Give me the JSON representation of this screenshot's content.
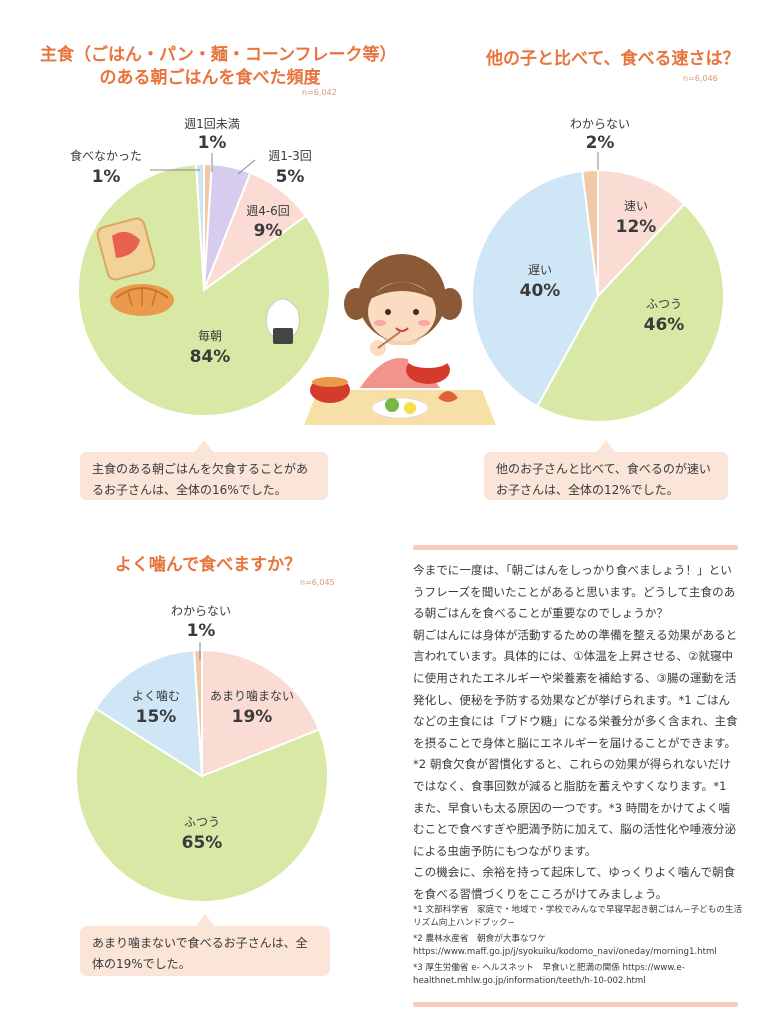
{
  "chart_data": [
    {
      "type": "pie",
      "title_line1": "主食（ごはん・パン・麺・コーンフレーク等）",
      "title_line2": "のある朝ごはんを食べた頻度",
      "n_label": "n=6,042",
      "slices": [
        {
          "label": "週1回未満",
          "value": 1,
          "pct_label": "1%",
          "color": "#f2c9a6"
        },
        {
          "label": "週1-3回",
          "value": 5,
          "pct_label": "5%",
          "color": "#d6cdee"
        },
        {
          "label": "週4-6回",
          "value": 9,
          "pct_label": "9%",
          "color": "#fbdcd4"
        },
        {
          "label": "毎朝",
          "value": 84,
          "pct_label": "84%",
          "color": "#d8e9a6"
        },
        {
          "label": "食べなかった",
          "value": 1,
          "pct_label": "1%",
          "color": "#cfe6f2"
        }
      ],
      "callout": "主食のある朝ごはんを欠食することがあるお子さんは、全体の16%でした。"
    },
    {
      "type": "pie",
      "title": "他の子と比べて、食べる速さは？",
      "n_label": "n=6,046",
      "slices": [
        {
          "label": "速い",
          "value": 12,
          "pct_label": "12%",
          "color": "#fbdcd4"
        },
        {
          "label": "ふつう",
          "value": 46,
          "pct_label": "46%",
          "color": "#d8e9a6"
        },
        {
          "label": "遅い",
          "value": 40,
          "pct_label": "40%",
          "color": "#cfe6f6"
        },
        {
          "label": "わからない",
          "value": 2,
          "pct_label": "2%",
          "color": "#f2c9a6"
        }
      ],
      "callout": "他のお子さんと比べて、食べるのが速いお子さんは、全体の12%でした。"
    },
    {
      "type": "pie",
      "title": "よく噛んで食べますか？",
      "n_label": "n=6,045",
      "slices": [
        {
          "label": "あまり噛まない",
          "value": 19,
          "pct_label": "19%",
          "color": "#fbdcd4"
        },
        {
          "label": "ふつう",
          "value": 65,
          "pct_label": "65%",
          "color": "#d8e9a6"
        },
        {
          "label": "よく噛む",
          "value": 15,
          "pct_label": "15%",
          "color": "#cfe6f6"
        },
        {
          "label": "わからない",
          "value": 1,
          "pct_label": "1%",
          "color": "#f2c9a6"
        }
      ],
      "callout": "あまり噛まないで食べるお子さんは、全体の19%でした。"
    }
  ],
  "article": {
    "paragraphs": [
      "今までに一度は、「朝ごはんをしっかり食べましょう！」というフレーズを聞いたことがあると思います。どうして主食のある朝ごはんを食べることが重要なのでしょうか？",
      "朝ごはんには身体が活動するための準備を整える効果があると言われています。具体的には、①体温を上昇させる、②就寝中に使用されたエネルギーや栄養素を補給する、③腸の運動を活発化し、便秘を予防する効果などが挙げられます。*1 ごはんなどの主食には「ブドウ糖」になる栄養分が多く含まれ、主食を摂ることで身体と脳にエネルギーを届けることができます。*2 朝食欠食が習慣化すると、これらの効果が得られないだけではなく、食事回数が減ると脂肪を蓄えやすくなります。*1 また、早食いも太る原因の一つです。*3 時間をかけてよく噛むことで食べすぎや肥満予防に加えて、脳の活性化や唾液分泌による虫歯予防にもつながります。",
      "この機会に、余裕を持って起床して、ゆっくりよく噛んで朝食を食べる習慣づくりをこころがけてみましょう。"
    ],
    "references": [
      "*1 文部科学省　家庭で・地域で・学校でみんなで早寝早起き朝ごはん−子どもの生活リズム向上ハンドブック−",
      "*2 農林水産省　朝食が大事なワケ https://www.maff.go.jp/j/syokuiku/kodomo_navi/oneday/morning1.html",
      "*3 厚生労働省 e- ヘルスネット　早食いと肥満の関係 https://www.e-healthnet.mhlw.go.jp/information/teeth/h-10-002.html"
    ]
  }
}
